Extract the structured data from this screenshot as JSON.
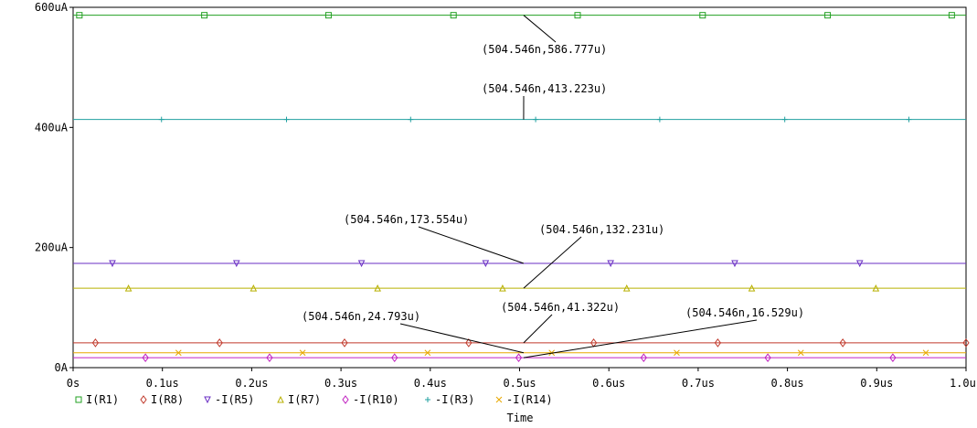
{
  "chart_data": {
    "type": "line",
    "title": "",
    "xlabel": "Time",
    "ylabel": "",
    "xlim": [
      0,
      1.0
    ],
    "ylim": [
      0,
      600
    ],
    "x_unit": "us",
    "y_unit": "uA",
    "grid": false,
    "legend_position": "bottom-left",
    "x_ticks": [
      {
        "value": 0.0,
        "label": "0s"
      },
      {
        "value": 0.1,
        "label": "0.1us"
      },
      {
        "value": 0.2,
        "label": "0.2us"
      },
      {
        "value": 0.3,
        "label": "0.3us"
      },
      {
        "value": 0.4,
        "label": "0.4us"
      },
      {
        "value": 0.5,
        "label": "0.5us"
      },
      {
        "value": 0.6,
        "label": "0.6us"
      },
      {
        "value": 0.7,
        "label": "0.7us"
      },
      {
        "value": 0.8,
        "label": "0.8us"
      },
      {
        "value": 0.9,
        "label": "0.9us"
      },
      {
        "value": 1.0,
        "label": "1.0us"
      }
    ],
    "y_ticks": [
      {
        "value": 0,
        "label": "0A"
      },
      {
        "value": 200,
        "label": "200uA"
      },
      {
        "value": 400,
        "label": "400uA"
      },
      {
        "value": 600,
        "label": "600uA"
      }
    ],
    "series": [
      {
        "name": "I(R1)",
        "value": 586.777,
        "color": "#22a022",
        "marker": "square",
        "marker_x": [
          0.007,
          0.147,
          0.286,
          0.426,
          0.565,
          0.705,
          0.845,
          0.984
        ]
      },
      {
        "name": "I(R8)",
        "value": 41.322,
        "color": "#c0392b",
        "marker": "diamond",
        "marker_x": [
          0.025,
          0.164,
          0.304,
          0.443,
          0.583,
          0.722,
          0.862,
          1.0
        ]
      },
      {
        "name": "-I(R5)",
        "value": 173.554,
        "color": "#6a2fc4",
        "marker": "triangle-down",
        "marker_x": [
          0.044,
          0.183,
          0.323,
          0.462,
          0.602,
          0.741,
          0.881
        ]
      },
      {
        "name": "I(R7)",
        "value": 132.231,
        "color": "#b8b000",
        "marker": "triangle-up",
        "marker_x": [
          0.062,
          0.202,
          0.341,
          0.481,
          0.62,
          0.76,
          0.899
        ]
      },
      {
        "name": "-I(R10)",
        "value": 16.529,
        "color": "#c020c0",
        "marker": "diamond",
        "marker_x": [
          0.081,
          0.22,
          0.36,
          0.499,
          0.639,
          0.778,
          0.918
        ]
      },
      {
        "name": "-I(R3)",
        "value": 413.223,
        "color": "#20a0a0",
        "marker": "plus",
        "marker_x": [
          0.099,
          0.239,
          0.378,
          0.518,
          0.657,
          0.797,
          0.936
        ]
      },
      {
        "name": "-I(R14)",
        "value": 24.793,
        "color": "#e8a800",
        "marker": "x",
        "marker_x": [
          0.118,
          0.257,
          0.397,
          0.536,
          0.676,
          0.815,
          0.955
        ]
      }
    ],
    "annotations": [
      {
        "x": 0.504546,
        "y": 586.777,
        "text": "(504.546n,586.777u)"
      },
      {
        "x": 0.504546,
        "y": 413.223,
        "text": "(504.546n,413.223u)"
      },
      {
        "x": 0.504546,
        "y": 173.554,
        "text": "(504.546n,173.554u)"
      },
      {
        "x": 0.504546,
        "y": 132.231,
        "text": "(504.546n,132.231u)"
      },
      {
        "x": 0.504546,
        "y": 41.322,
        "text": "(504.546n,41.322u)"
      },
      {
        "x": 0.504546,
        "y": 24.793,
        "text": "(504.546n,24.793u)"
      },
      {
        "x": 0.504546,
        "y": 16.529,
        "text": "(504.546n,16.529u)"
      }
    ]
  }
}
